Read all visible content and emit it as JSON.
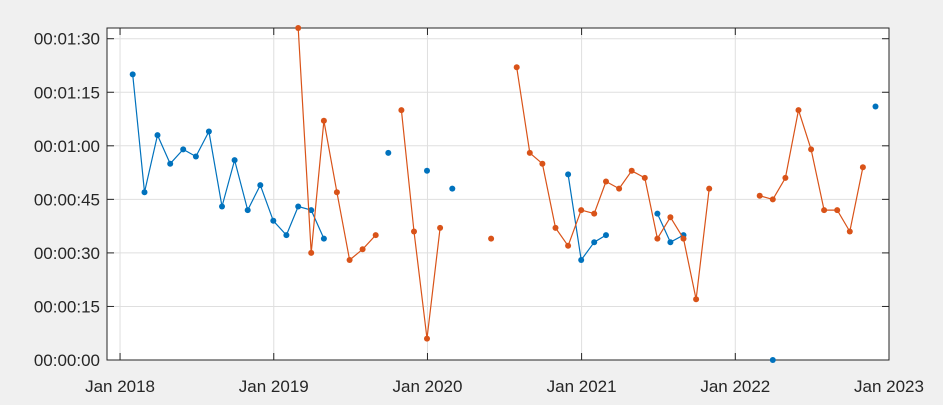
{
  "chart_data": {
    "type": "line",
    "title": "",
    "xlabel": "",
    "ylabel": "",
    "grid": true,
    "xlim": [
      "2017-12-01",
      "2023-01-01"
    ],
    "ylim": [
      "00:00:00",
      "00:01:33"
    ],
    "x_ticks": [
      {
        "value": "2018-01-01",
        "label": "Jan 2018"
      },
      {
        "value": "2019-01-01",
        "label": "Jan 2019"
      },
      {
        "value": "2020-01-01",
        "label": "Jan 2020"
      },
      {
        "value": "2021-01-01",
        "label": "Jan 2021"
      },
      {
        "value": "2022-01-01",
        "label": "Jan 2022"
      },
      {
        "value": "2023-01-01",
        "label": "Jan 2023"
      }
    ],
    "y_ticks": [
      {
        "value": "00:00:00",
        "label": "00:00:00"
      },
      {
        "value": "00:00:15",
        "label": "00:00:15"
      },
      {
        "value": "00:00:30",
        "label": "00:00:30"
      },
      {
        "value": "00:00:45",
        "label": "00:00:45"
      },
      {
        "value": "00:01:00",
        "label": "00:01:00"
      },
      {
        "value": "00:01:15",
        "label": "00:01:15"
      },
      {
        "value": "00:01:30",
        "label": "00:01:30"
      }
    ],
    "series": [
      {
        "color": "#0072bd",
        "segments": [
          [
            {
              "x": "2018-01-31",
              "y": "00:01:20"
            },
            {
              "x": "2018-02-28",
              "y": "00:00:47"
            },
            {
              "x": "2018-03-31",
              "y": "00:01:03"
            },
            {
              "x": "2018-04-30",
              "y": "00:00:55"
            },
            {
              "x": "2018-05-31",
              "y": "00:00:59"
            },
            {
              "x": "2018-06-30",
              "y": "00:00:57"
            },
            {
              "x": "2018-07-31",
              "y": "00:01:04"
            },
            {
              "x": "2018-08-31",
              "y": "00:00:43"
            },
            {
              "x": "2018-09-30",
              "y": "00:00:56"
            },
            {
              "x": "2018-10-31",
              "y": "00:00:42"
            },
            {
              "x": "2018-11-30",
              "y": "00:00:49"
            },
            {
              "x": "2018-12-31",
              "y": "00:00:39"
            },
            {
              "x": "2019-01-31",
              "y": "00:00:35"
            },
            {
              "x": "2019-02-28",
              "y": "00:00:43"
            },
            {
              "x": "2019-03-31",
              "y": "00:00:42"
            },
            {
              "x": "2019-04-30",
              "y": "00:00:34"
            }
          ],
          [
            {
              "x": "2019-09-30",
              "y": "00:00:58"
            }
          ],
          [
            {
              "x": "2019-12-31",
              "y": "00:00:53"
            }
          ],
          [
            {
              "x": "2020-02-29",
              "y": "00:00:48"
            }
          ],
          [
            {
              "x": "2020-11-30",
              "y": "00:00:52"
            },
            {
              "x": "2020-12-31",
              "y": "00:00:28"
            },
            {
              "x": "2021-01-31",
              "y": "00:00:33"
            },
            {
              "x": "2021-02-28",
              "y": "00:00:35"
            }
          ],
          [
            {
              "x": "2021-06-30",
              "y": "00:00:41"
            },
            {
              "x": "2021-07-31",
              "y": "00:00:33"
            },
            {
              "x": "2021-08-31",
              "y": "00:00:35"
            }
          ],
          [
            {
              "x": "2022-03-31",
              "y": "00:00:00"
            }
          ],
          [
            {
              "x": "2022-11-30",
              "y": "00:01:11"
            }
          ]
        ]
      },
      {
        "color": "#d95319",
        "segments": [
          [
            {
              "x": "2019-02-28",
              "y": "00:01:33"
            },
            {
              "x": "2019-03-31",
              "y": "00:00:30"
            },
            {
              "x": "2019-04-30",
              "y": "00:01:07"
            },
            {
              "x": "2019-05-31",
              "y": "00:00:47"
            },
            {
              "x": "2019-06-30",
              "y": "00:00:28"
            },
            {
              "x": "2019-07-31",
              "y": "00:00:31"
            },
            {
              "x": "2019-08-31",
              "y": "00:00:35"
            }
          ],
          [
            {
              "x": "2019-10-31",
              "y": "00:01:10"
            },
            {
              "x": "2019-11-30",
              "y": "00:00:36"
            },
            {
              "x": "2019-12-31",
              "y": "00:00:06"
            },
            {
              "x": "2020-01-31",
              "y": "00:00:37"
            }
          ],
          [
            {
              "x": "2020-05-31",
              "y": "00:00:34"
            }
          ],
          [
            {
              "x": "2020-07-31",
              "y": "00:01:22"
            },
            {
              "x": "2020-08-31",
              "y": "00:00:58"
            },
            {
              "x": "2020-09-30",
              "y": "00:00:55"
            },
            {
              "x": "2020-10-31",
              "y": "00:00:37"
            },
            {
              "x": "2020-11-30",
              "y": "00:00:32"
            },
            {
              "x": "2020-12-31",
              "y": "00:00:42"
            },
            {
              "x": "2021-01-31",
              "y": "00:00:41"
            },
            {
              "x": "2021-02-28",
              "y": "00:00:50"
            },
            {
              "x": "2021-03-31",
              "y": "00:00:48"
            },
            {
              "x": "2021-04-30",
              "y": "00:00:53"
            },
            {
              "x": "2021-05-31",
              "y": "00:00:51"
            },
            {
              "x": "2021-06-30",
              "y": "00:00:34"
            },
            {
              "x": "2021-07-31",
              "y": "00:00:40"
            },
            {
              "x": "2021-08-31",
              "y": "00:00:34"
            },
            {
              "x": "2021-09-30",
              "y": "00:00:17"
            },
            {
              "x": "2021-10-31",
              "y": "00:00:48"
            }
          ],
          [
            {
              "x": "2022-02-28",
              "y": "00:00:46"
            },
            {
              "x": "2022-03-31",
              "y": "00:00:45"
            },
            {
              "x": "2022-04-30",
              "y": "00:00:51"
            },
            {
              "x": "2022-05-31",
              "y": "00:01:10"
            },
            {
              "x": "2022-06-30",
              "y": "00:00:59"
            },
            {
              "x": "2022-07-31",
              "y": "00:00:42"
            },
            {
              "x": "2022-08-31",
              "y": "00:00:42"
            },
            {
              "x": "2022-09-30",
              "y": "00:00:36"
            },
            {
              "x": "2022-10-31",
              "y": "00:00:54"
            }
          ]
        ]
      }
    ]
  }
}
